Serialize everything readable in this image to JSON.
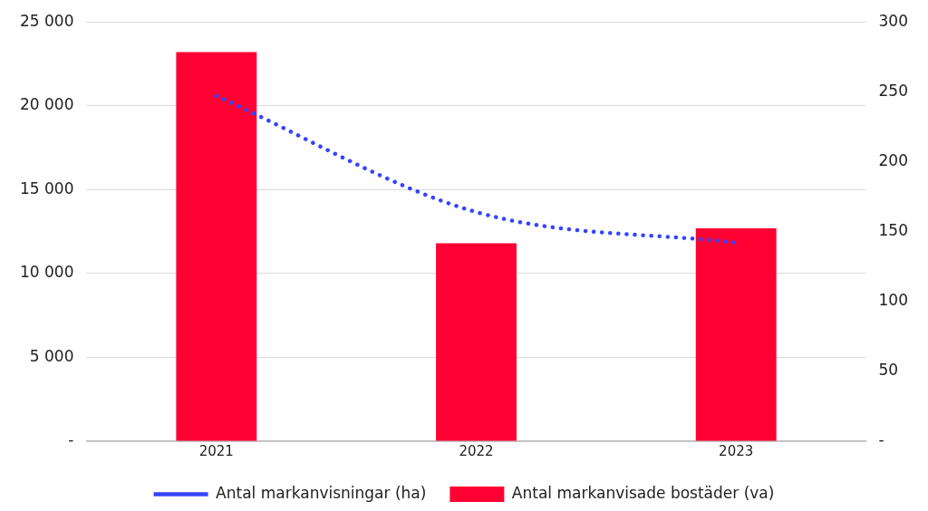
{
  "chart_data": {
    "type": "bar",
    "categories": [
      "2021",
      "2022",
      "2023"
    ],
    "series": [
      {
        "name": "Antal markanvisade bostäder (va)",
        "color": "#ff0033",
        "values": [
          23200,
          11800,
          12700
        ]
      },
      {
        "name": "Antal markanvisningar (ha)",
        "type": "line",
        "axis": "y2",
        "color": "#3344ff",
        "line_style": "dotted",
        "marker": "none",
        "values": [
          247,
          164,
          142
        ]
      }
    ],
    "ylim": [
      0,
      25000
    ],
    "yticks": [
      {
        "value": 0,
        "label": "-"
      },
      {
        "value": 5000,
        "label": "5 000"
      },
      {
        "value": 10000,
        "label": "10 000"
      },
      {
        "value": 15000,
        "label": "15 000"
      },
      {
        "value": 20000,
        "label": "20 000"
      },
      {
        "value": 25000,
        "label": "25 000"
      }
    ],
    "y2lim": [
      0,
      300
    ],
    "y2ticks": [
      {
        "value": 0,
        "label": "-"
      },
      50,
      100,
      150,
      200,
      250,
      300
    ],
    "grid": "y",
    "legend": "bottom"
  }
}
